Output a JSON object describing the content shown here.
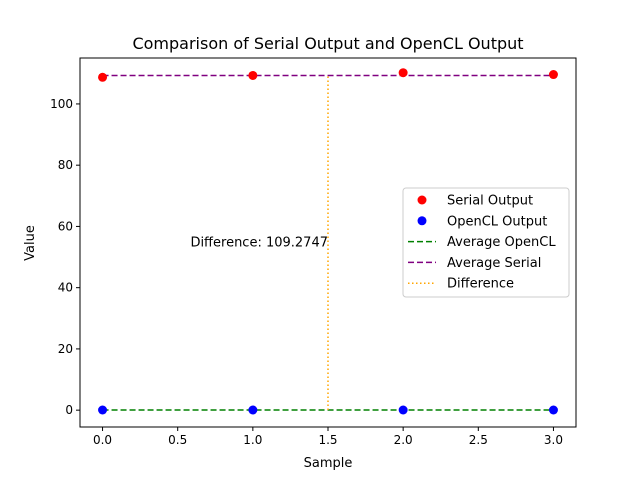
{
  "chart_data": {
    "type": "scatter",
    "title": "Comparison of Serial Output and OpenCL Output",
    "xlabel": "Sample",
    "ylabel": "Value",
    "xlim": [
      -0.15,
      3.15
    ],
    "ylim": [
      -5.5,
      115.0
    ],
    "xticks": [
      0.0,
      0.5,
      1.0,
      1.5,
      2.0,
      2.5,
      3.0
    ],
    "xtick_labels": [
      "0.0",
      "0.5",
      "1.0",
      "1.5",
      "2.0",
      "2.5",
      "3.0"
    ],
    "yticks": [
      0,
      20,
      40,
      60,
      80,
      100
    ],
    "ytick_labels": [
      "0",
      "20",
      "40",
      "60",
      "80",
      "100"
    ],
    "grid": false,
    "legend_position": "center-right",
    "series": [
      {
        "name": "Serial Output",
        "kind": "scatter",
        "color": "#ff0000",
        "x": [
          0,
          1,
          2,
          3
        ],
        "y": [
          108.7,
          109.3,
          110.2,
          109.6
        ]
      },
      {
        "name": "OpenCL Output",
        "kind": "scatter",
        "color": "#0000ff",
        "x": [
          0,
          1,
          2,
          3
        ],
        "y": [
          0.05,
          0.05,
          0.05,
          0.05
        ]
      }
    ],
    "hlines": [
      {
        "name": "Average OpenCL",
        "y": 0.05,
        "xmin": 0,
        "xmax": 3,
        "color": "#008000",
        "style": "dashed"
      },
      {
        "name": "Average Serial",
        "y": 109.3,
        "xmin": 0,
        "xmax": 3,
        "color": "#800080",
        "style": "dashed"
      }
    ],
    "vlines": [
      {
        "name": "Difference",
        "x": 1.5,
        "ymin": 0.05,
        "ymax": 109.3,
        "color": "#ffa500",
        "style": "dotted"
      }
    ],
    "annotation": {
      "text": "Difference: 109.2747",
      "x": 1.5,
      "y": 54.7,
      "align": "right"
    },
    "legend": [
      {
        "label": "Serial Output",
        "kind": "scatter",
        "color": "#ff0000"
      },
      {
        "label": "OpenCL Output",
        "kind": "scatter",
        "color": "#0000ff"
      },
      {
        "label": "Average OpenCL",
        "kind": "dashed",
        "color": "#008000"
      },
      {
        "label": "Average Serial",
        "kind": "dashed",
        "color": "#800080"
      },
      {
        "label": "Difference",
        "kind": "dotted",
        "color": "#ffa500"
      }
    ]
  }
}
